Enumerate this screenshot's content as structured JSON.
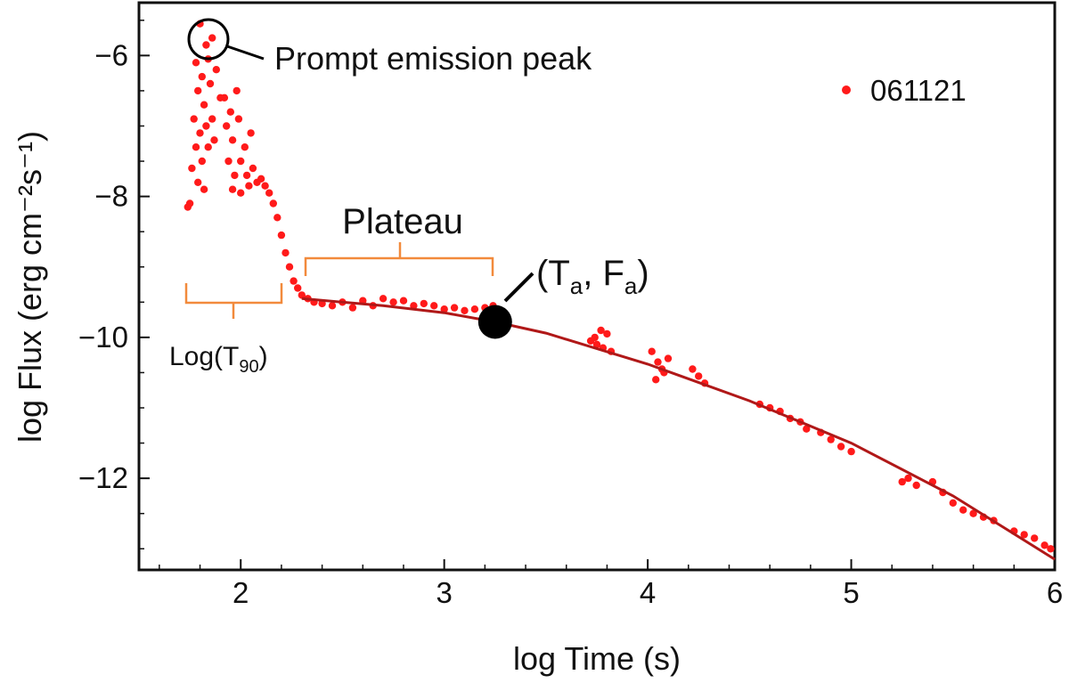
{
  "chart_data": {
    "type": "scatter",
    "title": "",
    "xlabel": "log Time (s)",
    "ylabel": "log Flux (erg cm⁻²s⁻¹)",
    "xlim": [
      1.5,
      6.0
    ],
    "ylim": [
      -13.3,
      -5.25
    ],
    "xticks": [
      2,
      3,
      4,
      5,
      6
    ],
    "yticks": [
      -6,
      -8,
      -10,
      -12
    ],
    "xtick_labels": [
      "2",
      "3",
      "4",
      "5",
      "6"
    ],
    "ytick_labels": [
      "−6",
      "−8",
      "−10",
      "−12"
    ],
    "legend": {
      "label": "061121",
      "position": "top-right"
    },
    "colors": {
      "points": "#ff1a1a",
      "fit": "#b01818",
      "bracket": "#f28a3c",
      "marker": "#000000"
    },
    "series": [
      {
        "name": "061121",
        "points": [
          [
            1.8,
            -5.55
          ],
          [
            1.83,
            -5.85
          ],
          [
            1.86,
            -5.75
          ],
          [
            1.78,
            -6.1
          ],
          [
            1.84,
            -6.05
          ],
          [
            1.81,
            -6.3
          ],
          [
            1.79,
            -6.5
          ],
          [
            1.82,
            -6.7
          ],
          [
            1.85,
            -6.4
          ],
          [
            1.88,
            -6.2
          ],
          [
            1.77,
            -6.9
          ],
          [
            1.8,
            -7.1
          ],
          [
            1.83,
            -7.0
          ],
          [
            1.86,
            -6.9
          ],
          [
            1.9,
            -6.6
          ],
          [
            1.78,
            -7.3
          ],
          [
            1.81,
            -7.5
          ],
          [
            1.84,
            -7.3
          ],
          [
            1.87,
            -7.2
          ],
          [
            1.76,
            -7.6
          ],
          [
            1.79,
            -7.8
          ],
          [
            1.82,
            -7.9
          ],
          [
            1.75,
            -8.1
          ],
          [
            1.74,
            -8.15
          ],
          [
            1.92,
            -6.6
          ],
          [
            1.95,
            -6.8
          ],
          [
            1.98,
            -6.5
          ],
          [
            1.93,
            -7.0
          ],
          [
            1.96,
            -7.2
          ],
          [
            1.99,
            -6.9
          ],
          [
            2.02,
            -7.3
          ],
          [
            2.05,
            -7.1
          ],
          [
            1.94,
            -7.5
          ],
          [
            1.97,
            -7.7
          ],
          [
            2.0,
            -7.5
          ],
          [
            2.03,
            -7.7
          ],
          [
            2.06,
            -7.6
          ],
          [
            1.96,
            -7.9
          ],
          [
            2.0,
            -7.95
          ],
          [
            2.04,
            -7.85
          ],
          [
            2.08,
            -7.8
          ],
          [
            2.1,
            -7.75
          ],
          [
            2.12,
            -7.85
          ],
          [
            2.14,
            -7.95
          ],
          [
            2.16,
            -8.1
          ],
          [
            2.18,
            -8.3
          ],
          [
            2.2,
            -8.55
          ],
          [
            2.22,
            -8.8
          ],
          [
            2.24,
            -9.0
          ],
          [
            2.26,
            -9.2
          ],
          [
            2.28,
            -9.3
          ],
          [
            2.3,
            -9.4
          ],
          [
            2.33,
            -9.45
          ],
          [
            2.36,
            -9.5
          ],
          [
            2.4,
            -9.52
          ],
          [
            2.45,
            -9.55
          ],
          [
            2.5,
            -9.5
          ],
          [
            2.55,
            -9.58
          ],
          [
            2.6,
            -9.48
          ],
          [
            2.65,
            -9.55
          ],
          [
            2.7,
            -9.45
          ],
          [
            2.75,
            -9.5
          ],
          [
            2.8,
            -9.48
          ],
          [
            2.85,
            -9.55
          ],
          [
            2.9,
            -9.52
          ],
          [
            2.95,
            -9.55
          ],
          [
            3.0,
            -9.6
          ],
          [
            3.05,
            -9.58
          ],
          [
            3.1,
            -9.62
          ],
          [
            3.15,
            -9.6
          ],
          [
            3.2,
            -9.58
          ],
          [
            3.24,
            -9.55
          ],
          [
            3.72,
            -10.05
          ],
          [
            3.75,
            -10.1
          ],
          [
            3.78,
            -10.15
          ],
          [
            3.8,
            -9.95
          ],
          [
            3.77,
            -9.9
          ],
          [
            3.74,
            -10.0
          ],
          [
            3.82,
            -10.2
          ],
          [
            4.02,
            -10.2
          ],
          [
            4.05,
            -10.35
          ],
          [
            4.08,
            -10.5
          ],
          [
            4.04,
            -10.6
          ],
          [
            4.1,
            -10.3
          ],
          [
            4.07,
            -10.45
          ],
          [
            4.22,
            -10.45
          ],
          [
            4.25,
            -10.55
          ],
          [
            4.28,
            -10.65
          ],
          [
            4.55,
            -10.95
          ],
          [
            4.6,
            -11.0
          ],
          [
            4.65,
            -11.05
          ],
          [
            4.7,
            -11.15
          ],
          [
            4.75,
            -11.2
          ],
          [
            4.78,
            -11.3
          ],
          [
            4.85,
            -11.35
          ],
          [
            4.9,
            -11.45
          ],
          [
            4.95,
            -11.55
          ],
          [
            5.0,
            -11.62
          ],
          [
            5.25,
            -12.05
          ],
          [
            5.28,
            -12.0
          ],
          [
            5.32,
            -12.1
          ],
          [
            5.4,
            -12.05
          ],
          [
            5.45,
            -12.2
          ],
          [
            5.5,
            -12.35
          ],
          [
            5.55,
            -12.45
          ],
          [
            5.6,
            -12.5
          ],
          [
            5.65,
            -12.55
          ],
          [
            5.7,
            -12.6
          ],
          [
            5.8,
            -12.75
          ],
          [
            5.85,
            -12.8
          ],
          [
            5.9,
            -12.85
          ],
          [
            5.95,
            -12.95
          ],
          [
            5.98,
            -13.0
          ]
        ]
      }
    ],
    "fit_curve": {
      "x": [
        2.3,
        2.7,
        3.0,
        3.25,
        3.5,
        4.0,
        4.5,
        5.0,
        5.5,
        6.0
      ],
      "y": [
        -9.45,
        -9.55,
        -9.65,
        -9.78,
        -9.94,
        -10.38,
        -10.9,
        -11.5,
        -12.25,
        -13.15
      ]
    },
    "break_point": {
      "x": 3.25,
      "y": -9.78
    },
    "annotations": {
      "prompt_peak": "Prompt emission peak",
      "plateau": "Plateau",
      "t90_prefix": "Log(T",
      "t90_sub": "90",
      "t90_suffix": ")",
      "ta_open": "(T",
      "ta_sub": "a",
      "ta_mid": ", F",
      "fa_sub": "a",
      "ta_close": ")"
    }
  }
}
